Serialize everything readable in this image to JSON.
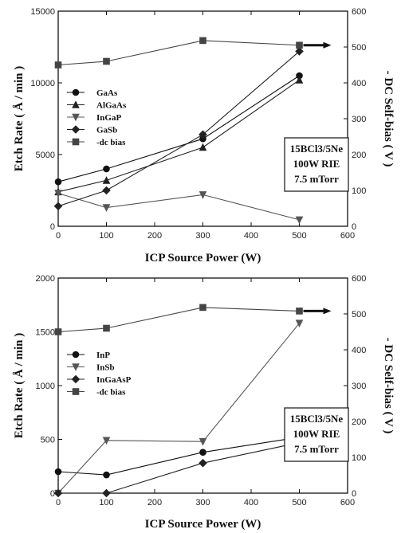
{
  "chart_data": [
    {
      "type": "line",
      "xlabel": "ICP Source Power (W)",
      "ylabel": "Etch Rate ( Å / min )",
      "y2label": "- DC Self-bias ( V )",
      "xlim": [
        0,
        600
      ],
      "ylim": [
        0,
        15000
      ],
      "y2lim": [
        0,
        600
      ],
      "xticks": [
        "0",
        "100",
        "200",
        "300",
        "400",
        "500",
        "600"
      ],
      "yticks": [
        "0",
        "5000",
        "10000",
        "15000"
      ],
      "y2ticks": [
        "0",
        "100",
        "200",
        "300",
        "400",
        "500",
        "600"
      ],
      "x": [
        0,
        100,
        300,
        500
      ],
      "legend_position": "left",
      "annotation": [
        "15BCl3/5Ne",
        "100W RIE",
        "7.5 mTorr"
      ],
      "series": [
        {
          "name": "GaAs",
          "marker": "circle",
          "axis": "left",
          "color": "#111111",
          "values": [
            3100,
            4000,
            6100,
            10500
          ]
        },
        {
          "name": "AlGaAs",
          "marker": "triangle-up",
          "axis": "left",
          "color": "#222222",
          "values": [
            2400,
            3200,
            5500,
            10200
          ]
        },
        {
          "name": "InGaP",
          "marker": "triangle-down",
          "axis": "left",
          "color": "#555555",
          "values": [
            2300,
            1300,
            2200,
            450
          ]
        },
        {
          "name": "GaSb",
          "marker": "diamond",
          "axis": "left",
          "color": "#222222",
          "values": [
            1400,
            2500,
            6400,
            12200
          ]
        },
        {
          "name": "-dc bias",
          "marker": "square",
          "axis": "right",
          "color": "#444444",
          "values": [
            450,
            460,
            518,
            505
          ]
        }
      ]
    },
    {
      "type": "line",
      "xlabel": "ICP Source Power (W)",
      "ylabel": "Etch Rate ( Å / min )",
      "y2label": "- DC Self-bias ( V )",
      "xlim": [
        0,
        600
      ],
      "ylim": [
        0,
        2000
      ],
      "y2lim": [
        0,
        600
      ],
      "xticks": [
        "0",
        "100",
        "200",
        "300",
        "400",
        "500",
        "600"
      ],
      "yticks": [
        "0",
        "500",
        "1000",
        "1500",
        "2000"
      ],
      "y2ticks": [
        "0",
        "100",
        "200",
        "300",
        "400",
        "500",
        "600"
      ],
      "x": [
        0,
        100,
        300,
        500
      ],
      "legend_position": "left",
      "annotation": [
        "15BCl3/5Ne",
        "100W RIE",
        "7.5 mTorr"
      ],
      "series": [
        {
          "name": "InP",
          "marker": "circle",
          "axis": "left",
          "color": "#111111",
          "values": [
            200,
            170,
            380,
            520
          ]
        },
        {
          "name": "InSb",
          "marker": "triangle-down",
          "axis": "left",
          "color": "#555555",
          "values": [
            0,
            490,
            480,
            1580
          ]
        },
        {
          "name": "InGaAsP",
          "marker": "diamond",
          "axis": "left",
          "color": "#222222",
          "values": [
            0,
            0,
            280,
            470
          ]
        },
        {
          "name": "-dc bias",
          "marker": "square",
          "axis": "right",
          "color": "#444444",
          "values": [
            450,
            460,
            518,
            508
          ]
        }
      ]
    }
  ]
}
